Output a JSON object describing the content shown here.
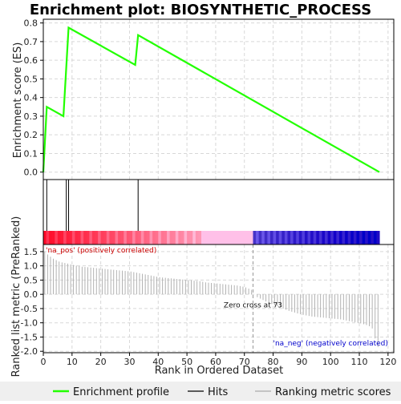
{
  "chart_data": {
    "type": "line",
    "title": "Enrichment plot: BIOSYNTHETIC_PROCESS",
    "xlabel": "Rank in Ordered Dataset",
    "xlim": [
      0,
      122
    ],
    "x_ticks": [
      0,
      10,
      20,
      30,
      40,
      50,
      60,
      70,
      80,
      90,
      100,
      110,
      120
    ],
    "es_panel": {
      "ylabel": "Enrichment score (ES)",
      "ylim": [
        -0.04,
        0.82
      ],
      "y_ticks": [
        "0.0",
        "0.1",
        "0.2",
        "0.3",
        "0.4",
        "0.5",
        "0.6",
        "0.7",
        "0.8"
      ],
      "grid": true,
      "series_color": "#22ff00",
      "points": [
        {
          "x": 0,
          "y": 0.0
        },
        {
          "x": 1.2,
          "y": 0.35
        },
        {
          "x": 7,
          "y": 0.3
        },
        {
          "x": 8.8,
          "y": 0.775
        },
        {
          "x": 32,
          "y": 0.575
        },
        {
          "x": 33,
          "y": 0.735
        },
        {
          "x": 117,
          "y": 0.0
        }
      ]
    },
    "hits_panel": {
      "hit_positions": [
        1.2,
        8.0,
        8.8,
        33.0
      ]
    },
    "rank_panel": {
      "ylabel": "Ranked list metric (PreRanked)",
      "ylim": [
        -2.05,
        1.75
      ],
      "y_ticks": [
        "1.5",
        "1.0",
        "0.5",
        "0.0",
        "-0.5",
        "-1.0",
        "-1.5",
        "-2.0"
      ],
      "grid": true,
      "zero_cross_rank": 73,
      "zero_cross_label": "Zero cross at 73",
      "pos_label": "'na_pos' (positively correlated)",
      "neg_label": "'na_neg' (negatively correlated)",
      "n_ranks": 117,
      "metric_values": [
        1.5,
        1.4,
        1.32,
        1.25,
        1.2,
        1.15,
        1.12,
        1.1,
        1.08,
        1.05,
        1.03,
        1.01,
        0.99,
        0.97,
        0.96,
        0.95,
        0.94,
        0.93,
        0.92,
        0.91,
        0.9,
        0.89,
        0.88,
        0.87,
        0.86,
        0.85,
        0.84,
        0.83,
        0.82,
        0.81,
        0.8,
        0.78,
        0.76,
        0.74,
        0.72,
        0.7,
        0.68,
        0.66,
        0.64,
        0.62,
        0.6,
        0.59,
        0.58,
        0.57,
        0.56,
        0.55,
        0.54,
        0.53,
        0.52,
        0.51,
        0.5,
        0.49,
        0.48,
        0.47,
        0.46,
        0.44,
        0.42,
        0.41,
        0.4,
        0.39,
        0.38,
        0.37,
        0.36,
        0.35,
        0.34,
        0.33,
        0.32,
        0.31,
        0.29,
        0.27,
        0.24,
        0.2,
        0.16,
        0.0,
        -0.1,
        -0.15,
        -0.2,
        -0.25,
        -0.3,
        -0.34,
        -0.38,
        -0.42,
        -0.46,
        -0.5,
        -0.54,
        -0.58,
        -0.61,
        -0.64,
        -0.67,
        -0.7,
        -0.72,
        -0.74,
        -0.76,
        -0.78,
        -0.79,
        -0.8,
        -0.81,
        -0.82,
        -0.83,
        -0.84,
        -0.85,
        -0.86,
        -0.87,
        -0.88,
        -0.9,
        -0.92,
        -0.94,
        -0.96,
        -0.98,
        -1.0,
        -1.02,
        -1.05,
        -1.08,
        -1.12,
        -1.2,
        -1.55,
        -1.85
      ]
    },
    "legend": {
      "placement": "bottom",
      "entries": [
        {
          "label": "Enrichment profile",
          "color": "#22ff00"
        },
        {
          "label": "Hits",
          "color": "#000000"
        },
        {
          "label": "Ranking metric scores",
          "color": "#aaaaaa"
        }
      ]
    }
  }
}
